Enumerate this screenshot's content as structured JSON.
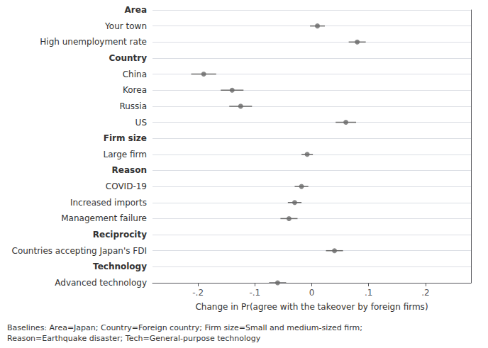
{
  "chart_data": {
    "type": "scatter",
    "orientation": "horizontal",
    "categories": [
      "Area",
      "Your town",
      "High unemployment rate",
      "Country",
      "China",
      "Korea",
      "Russia",
      "US",
      "Firm size",
      "Large firm",
      "Reason",
      "COVID-19",
      "Increased imports",
      "Management failure",
      "Reciprocity",
      "Countries accepting Japan's FDI",
      "Technology",
      "Advanced technology"
    ],
    "values": [
      null,
      0.01,
      0.08,
      null,
      -0.19,
      -0.14,
      -0.125,
      0.06,
      null,
      -0.008,
      null,
      -0.018,
      -0.03,
      -0.04,
      null,
      0.04,
      null,
      -0.06
    ],
    "error_lo": [
      null,
      0.013,
      0.015,
      null,
      0.022,
      0.02,
      0.02,
      0.018,
      null,
      0.01,
      null,
      0.012,
      0.012,
      0.015,
      null,
      0.015,
      null,
      0.015
    ],
    "error_hi": [
      null,
      0.013,
      0.015,
      null,
      0.022,
      0.02,
      0.02,
      0.018,
      null,
      0.01,
      null,
      0.012,
      0.012,
      0.015,
      null,
      0.015,
      null,
      0.015
    ],
    "color": "#696969",
    "xlim": [
      -0.28,
      0.28
    ],
    "xticks": [
      {
        "value": -0.2,
        "label": "-.2"
      },
      {
        "value": -0.1,
        "label": "-.1"
      },
      0,
      {
        "value": 0.1,
        "label": ".1"
      },
      {
        "value": 0.2,
        "label": ".2"
      }
    ],
    "xlabel": "Change in Pr(agree with the takeover by foreign firms)",
    "annotations": [
      "Baselines: Area=Japan; Country=Foreign country; Firm size=Small and medium-sized firm;\nReason=Earthquake disaster; Tech=General-purpose technology"
    ],
    "grid": true
  }
}
